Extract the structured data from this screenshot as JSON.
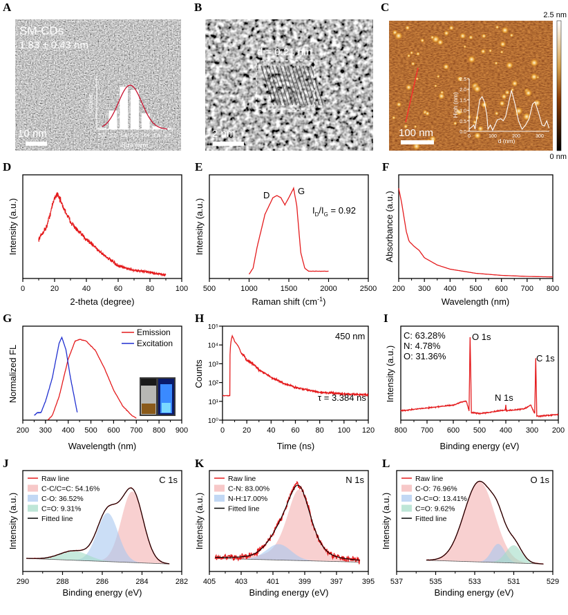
{
  "panels": {
    "A": {
      "letter": "A",
      "sample": "SM-CDs",
      "size": "1.83 ± 0.43 nm",
      "scale_bar": "10 nm"
    },
    "B": {
      "letter": "B",
      "spacing": "d = 0.21 nm",
      "scale_bar": "2 nm"
    },
    "C": {
      "letter": "C",
      "scale_bar": "100 nm",
      "colorbar_max": "2.5 nm",
      "colorbar_min": "0 nm"
    },
    "D": {
      "letter": "D",
      "xlabel": "2-theta (degree)",
      "ylabel": "Intensity (a.u.)"
    },
    "E": {
      "letter": "E",
      "xlabel_parts": [
        "Raman shift (cm",
        "-1",
        ")"
      ],
      "ylabel": "Intensity (a.u.)",
      "peak_d": "D",
      "peak_g": "G",
      "ratio_parts": [
        "I",
        "D",
        "/I",
        "G",
        " = 0.92"
      ]
    },
    "F": {
      "letter": "F",
      "xlabel": "Wavelength (nm)",
      "ylabel": "Absorbance (a.u.)"
    },
    "G": {
      "letter": "G",
      "xlabel": "Wavelength (nm)",
      "ylabel": "Normalized FL",
      "legend": [
        "Emission",
        "Excitation"
      ]
    },
    "H": {
      "letter": "H",
      "xlabel": "Time (ns)",
      "ylabel": "Counts",
      "wavelength": "450 nm",
      "lifetime": "τ = 3.384 ns"
    },
    "I": {
      "letter": "I",
      "xlabel": "Binding energy (eV)",
      "ylabel": "Intensity (a.u.)",
      "composition": [
        "C: 63.28%",
        "N: 4.78%",
        "O: 31.36%"
      ],
      "peaks": {
        "o1s": "O 1s",
        "c1s": "C 1s",
        "n1s": "N 1s"
      }
    },
    "J": {
      "letter": "J",
      "xlabel": "Binding energy (eV)",
      "ylabel": "Intensity (a.u.)",
      "title": "C 1s"
    },
    "K": {
      "letter": "K",
      "xlabel": "Binding energy (eV)",
      "ylabel": "Intensity (a.u.)",
      "title": "N 1s"
    },
    "L": {
      "letter": "L",
      "xlabel": "Binding energy (eV)",
      "ylabel": "Intensity (a.u.)",
      "title": "O 1s"
    }
  },
  "colors": {
    "red": "#e41a1c",
    "blue": "#1f2fd0",
    "black": "#000000",
    "pink": "#f4b0b0",
    "lightblue": "#a8c8f0",
    "green": "#a2dcc6"
  },
  "chart_data": [
    {
      "panel": "A-inset",
      "type": "bar",
      "xlabel": "Size (nm)",
      "ylabel": "Counts",
      "xlim": [
        0.6,
        3.4
      ],
      "ylim": [
        0,
        1
      ],
      "xticks": [
        "0.8",
        "1.2",
        "1.6",
        "2.0",
        "2.4",
        "2.8",
        "3.2"
      ],
      "categories": [
        0.8,
        1.2,
        1.6,
        2.0,
        2.4,
        2.8,
        3.2
      ],
      "values": [
        0.02,
        0.36,
        0.82,
        0.76,
        0.3,
        0.06,
        0.02
      ],
      "fit": {
        "type": "gaussian",
        "center": 1.83,
        "sigma": 0.43
      }
    },
    {
      "panel": "C-inset",
      "type": "line",
      "xlabel": "d (nm)",
      "ylabel": "High (nm)",
      "xlim": [
        0,
        340
      ],
      "ylim": [
        0,
        2.5
      ],
      "xticks": [
        "0",
        "100",
        "200",
        "300"
      ],
      "yticks": [
        "0.0",
        "0.5",
        "1.0",
        "1.5",
        "2.0",
        "2.5"
      ],
      "series": [
        {
          "points": [
            [
              0,
              0.1
            ],
            [
              10,
              0.2
            ],
            [
              20,
              0.3
            ],
            [
              25,
              0.1
            ],
            [
              35,
              0.8
            ],
            [
              45,
              1.5
            ],
            [
              55,
              1.65
            ],
            [
              65,
              1.4
            ],
            [
              75,
              0.8
            ],
            [
              80,
              0.1
            ],
            [
              90,
              0.3
            ],
            [
              100,
              0.05
            ],
            [
              110,
              0.3
            ],
            [
              120,
              0.55
            ],
            [
              135,
              0.6
            ],
            [
              145,
              0.5
            ],
            [
              155,
              0.7
            ],
            [
              165,
              1.2
            ],
            [
              180,
              1.95
            ],
            [
              195,
              1.3
            ],
            [
              210,
              0.5
            ],
            [
              225,
              0.1
            ],
            [
              240,
              0.3
            ],
            [
              255,
              0.6
            ],
            [
              270,
              1.3
            ],
            [
              280,
              1.4
            ],
            [
              295,
              0.9
            ],
            [
              310,
              0.3
            ],
            [
              320,
              0.25
            ],
            [
              330,
              0.5
            ],
            [
              340,
              0.15
            ]
          ]
        }
      ]
    },
    {
      "panel": "D",
      "type": "line",
      "xlim": [
        0,
        100
      ],
      "ylim": [
        0,
        1
      ],
      "xticks": [
        "0",
        "20",
        "40",
        "60",
        "80",
        "100"
      ],
      "series": [
        {
          "color": "red",
          "points": [
            [
              10,
              0.38
            ],
            [
              15,
              0.5
            ],
            [
              20,
              0.78
            ],
            [
              22,
              0.82
            ],
            [
              25,
              0.7
            ],
            [
              30,
              0.55
            ],
            [
              35,
              0.45
            ],
            [
              40,
              0.38
            ],
            [
              50,
              0.24
            ],
            [
              60,
              0.12
            ],
            [
              70,
              0.08
            ],
            [
              80,
              0.06
            ],
            [
              90,
              0.03
            ]
          ]
        }
      ]
    },
    {
      "panel": "E",
      "type": "line",
      "xlim": [
        500,
        2500
      ],
      "ylim": [
        0,
        1
      ],
      "xticks": [
        "500",
        "1000",
        "1500",
        "2000",
        "2500"
      ],
      "series": [
        {
          "color": "red",
          "points": [
            [
              1000,
              0.04
            ],
            [
              1050,
              0.1
            ],
            [
              1100,
              0.3
            ],
            [
              1200,
              0.62
            ],
            [
              1300,
              0.78
            ],
            [
              1350,
              0.8
            ],
            [
              1400,
              0.78
            ],
            [
              1450,
              0.71
            ],
            [
              1500,
              0.78
            ],
            [
              1560,
              0.87
            ],
            [
              1600,
              0.7
            ],
            [
              1650,
              0.25
            ],
            [
              1700,
              0.1
            ],
            [
              1750,
              0.07
            ],
            [
              2000,
              0.07
            ]
          ]
        }
      ]
    },
    {
      "panel": "F",
      "type": "line",
      "xlim": [
        200,
        800
      ],
      "ylim": [
        0,
        1
      ],
      "xticks": [
        "200",
        "300",
        "400",
        "500",
        "600",
        "700",
        "800"
      ],
      "series": [
        {
          "color": "red",
          "points": [
            [
              200,
              0.87
            ],
            [
              210,
              0.75
            ],
            [
              220,
              0.6
            ],
            [
              230,
              0.45
            ],
            [
              240,
              0.36
            ],
            [
              260,
              0.31
            ],
            [
              280,
              0.27
            ],
            [
              300,
              0.2
            ],
            [
              350,
              0.13
            ],
            [
              400,
              0.09
            ],
            [
              500,
              0.05
            ],
            [
              600,
              0.03
            ],
            [
              700,
              0.02
            ],
            [
              800,
              0.015
            ]
          ]
        }
      ]
    },
    {
      "panel": "G",
      "type": "line",
      "xlim": [
        200,
        900
      ],
      "ylim": [
        0,
        1
      ],
      "xticks": [
        "200",
        "300",
        "400",
        "500",
        "600",
        "700",
        "800",
        "900"
      ],
      "legend": "top-right",
      "series": [
        {
          "name": "Emission",
          "color": "red",
          "points": [
            [
              310,
              0.0
            ],
            [
              330,
              0.05
            ],
            [
              360,
              0.25
            ],
            [
              400,
              0.65
            ],
            [
              430,
              0.84
            ],
            [
              450,
              0.86
            ],
            [
              480,
              0.84
            ],
            [
              520,
              0.74
            ],
            [
              560,
              0.55
            ],
            [
              600,
              0.32
            ],
            [
              640,
              0.15
            ],
            [
              680,
              0.05
            ],
            [
              700,
              0.02
            ]
          ]
        },
        {
          "name": "Excitation",
          "color": "blue",
          "points": [
            [
              250,
              0.05
            ],
            [
              265,
              0.08
            ],
            [
              280,
              0.08
            ],
            [
              300,
              0.2
            ],
            [
              330,
              0.45
            ],
            [
              360,
              0.82
            ],
            [
              372,
              0.88
            ],
            [
              390,
              0.75
            ],
            [
              410,
              0.45
            ],
            [
              440,
              0.08
            ]
          ]
        }
      ]
    },
    {
      "panel": "H",
      "type": "line",
      "xlim": [
        0,
        120
      ],
      "ylim": [
        1,
        100000
      ],
      "ylog": true,
      "xticks": [
        "0",
        "20",
        "40",
        "60",
        "80",
        "100",
        "120"
      ],
      "yticks": [
        "10⁰",
        "10¹",
        "10²",
        "10³",
        "10⁴",
        "10⁵"
      ],
      "series": [
        {
          "color": "red",
          "points": [
            [
              0,
              20
            ],
            [
              6,
              20
            ],
            [
              8,
              30000
            ],
            [
              10,
              15000
            ],
            [
              15,
              4000
            ],
            [
              20,
              1500
            ],
            [
              30,
              450
            ],
            [
              40,
              180
            ],
            [
              50,
              90
            ],
            [
              60,
              55
            ],
            [
              70,
              40
            ],
            [
              80,
              30
            ],
            [
              100,
              25
            ],
            [
              120,
              22
            ]
          ]
        }
      ]
    },
    {
      "panel": "I",
      "type": "line",
      "xlim": [
        800,
        200
      ],
      "ylim": [
        0,
        1
      ],
      "xticks": [
        "800",
        "700",
        "600",
        "500",
        "400",
        "300",
        "200"
      ],
      "series": [
        {
          "color": "red",
          "points": [
            [
              800,
              0.1
            ],
            [
              700,
              0.13
            ],
            [
              600,
              0.16
            ],
            [
              560,
              0.2
            ],
            [
              550,
              0.2
            ],
            [
              540,
              0.1
            ],
            [
              536,
              0.89
            ],
            [
              531,
              0.08
            ],
            [
              500,
              0.07
            ],
            [
              420,
              0.1
            ],
            [
              402,
              0.11
            ],
            [
              400,
              0.16
            ],
            [
              398,
              0.1
            ],
            [
              330,
              0.12
            ],
            [
              305,
              0.16
            ],
            [
              290,
              0.07
            ],
            [
              286,
              0.66
            ],
            [
              282,
              0.04
            ],
            [
              200,
              0.06
            ]
          ]
        }
      ]
    },
    {
      "panel": "J",
      "type": "area",
      "xlim": [
        291,
        282
      ],
      "ylim": [
        -0.08,
        1
      ],
      "xticks": [
        "290",
        "288",
        "286",
        "284",
        "282"
      ],
      "raw_range": [
        290.8,
        282.7
      ],
      "baseline": [
        0.06,
        0.0
      ],
      "legend_labels": [
        "Raw line",
        "C-C/C=C: 54.16%",
        "C-O: 36.52%",
        "C=O: 9.31%",
        "Fitted line"
      ],
      "components": [
        {
          "color": "pink",
          "center": 284.8,
          "height": 0.76,
          "fwhm": 1.45
        },
        {
          "color": "lightblue",
          "center": 286.2,
          "height": 0.52,
          "fwhm": 1.4
        },
        {
          "color": "green",
          "center": 288.1,
          "height": 0.1,
          "fwhm": 1.9
        }
      ]
    },
    {
      "panel": "K",
      "type": "area",
      "xlim": [
        406,
        395
      ],
      "ylim": [
        -0.08,
        1
      ],
      "xticks": [
        "405",
        "403",
        "401",
        "399",
        "397",
        "395"
      ],
      "raw_range": [
        405.6,
        395.6
      ],
      "baseline": [
        0.06,
        0.02
      ],
      "legend_labels": [
        "Raw line",
        "C-N: 83.00%",
        "N-H:17.00%",
        "Fitted line"
      ],
      "components": [
        {
          "color": "pink",
          "center": 399.8,
          "height": 0.76,
          "fwhm": 2.0
        },
        {
          "color": "lightblue",
          "center": 401.2,
          "height": 0.17,
          "fwhm": 2.0
        }
      ]
    },
    {
      "panel": "L",
      "type": "area",
      "xlim": [
        538,
        528
      ],
      "ylim": [
        -0.08,
        1
      ],
      "xticks": [
        "537",
        "535",
        "533",
        "531",
        "529"
      ],
      "raw_range": [
        536.1,
        528.6
      ],
      "baseline": [
        0.04,
        0.0
      ],
      "legend_labels": [
        "Raw line",
        "C-O: 76.96%",
        "O-C=O: 13.41%",
        "C=O: 9.62%",
        "Fitted line"
      ],
      "components": [
        {
          "color": "pink",
          "center": 532.7,
          "height": 0.86,
          "fwhm": 2.3
        },
        {
          "color": "lightblue",
          "center": 531.5,
          "height": 0.2,
          "fwhm": 1.0
        },
        {
          "color": "green",
          "center": 530.5,
          "height": 0.19,
          "fwhm": 1.2
        }
      ]
    }
  ]
}
